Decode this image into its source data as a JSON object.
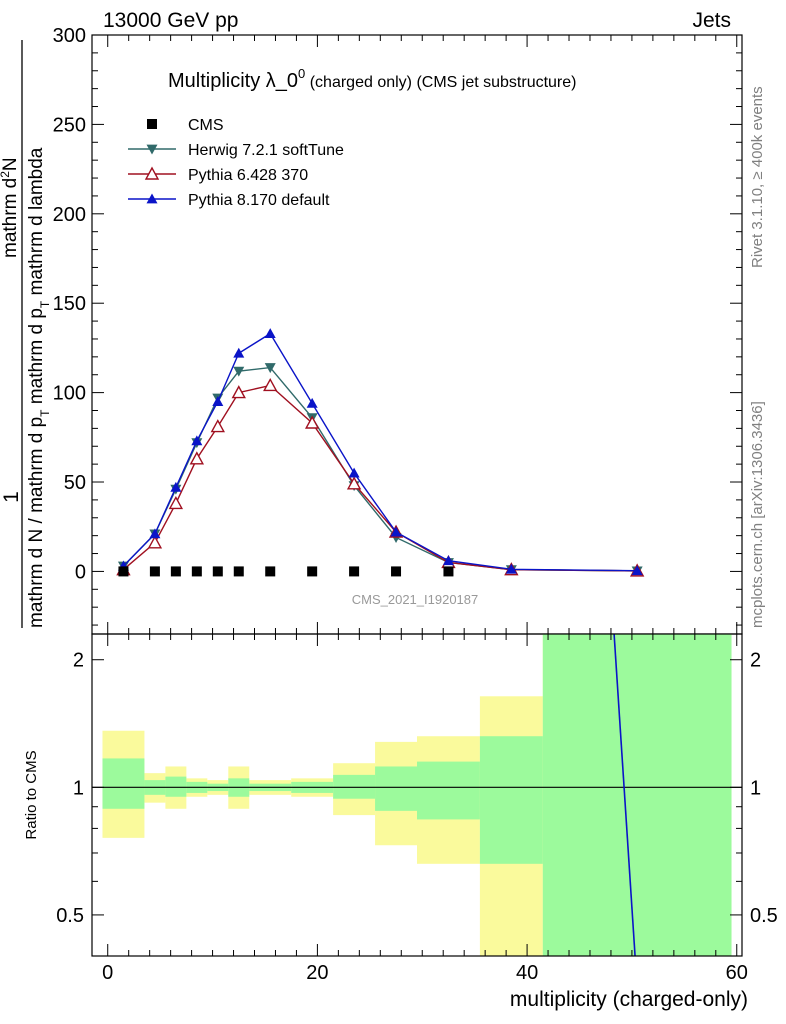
{
  "header": {
    "left_label": "13000 GeV pp",
    "right_label": "Jets"
  },
  "side_labels": {
    "rivet": "Rivet 3.1.10, ≥ 400k events",
    "mcplots": "mcplots.cern.ch [arXiv:1306.3436]"
  },
  "colors": {
    "cms": "#000000",
    "herwig": "#306a6a",
    "pythia6": "#a01020",
    "pythia8": "#0a14c8",
    "band_inner": "#9cfa9c",
    "band_outer": "#fafa9c"
  },
  "chart_data": [
    {
      "type": "line",
      "title_main": "Multiplicity λ_0",
      "title_sup": "0",
      "title_sub": " (charged only) (CMS jet substructure)",
      "ylabel_prefix": "1",
      "ylabel_den": "mathrm d N / mathrm d p",
      "ylabel_num_frac_top": "mathrm d",
      "ylabel_num_frac_top_sup": "2",
      "ylabel_num": "N",
      "ylabel_den2": "mathrm d p",
      "ylabel_den2_sub": "T",
      "ylabel_den2_tail": " mathrm d lambda",
      "ylabel_den_sub": "T",
      "ylabel_den_tail": " mathrm d p",
      "watermark": "CMS_2021_I1920187",
      "xlim": [
        -1.5,
        60.5
      ],
      "ylim": [
        -35,
        300
      ],
      "yticks": [
        0,
        50,
        100,
        150,
        200,
        250,
        300
      ],
      "yticklabels": [
        "0",
        "50",
        "100",
        "150",
        "200",
        "250",
        "300"
      ],
      "legend_position": "top-left",
      "series": [
        {
          "name": "CMS",
          "marker": "square",
          "x": [
            1.5,
            4.5,
            6.5,
            8.5,
            10.5,
            12.5,
            15.5,
            19.5,
            23.5,
            27.5,
            32.5
          ],
          "y": [
            0,
            0,
            0,
            0,
            0,
            0,
            0,
            0,
            0,
            0,
            0
          ]
        },
        {
          "name": "Herwig 7.2.1 softTune",
          "marker": "triangle-down",
          "x": [
            1.5,
            4.5,
            6.5,
            8.5,
            10.5,
            12.5,
            15.5,
            19.5,
            23.5,
            27.5,
            32.5,
            38.5,
            50.5
          ],
          "y": [
            3,
            21,
            46,
            72,
            97,
            112,
            114,
            86,
            48,
            19,
            5,
            1,
            0.3
          ]
        },
        {
          "name": "Pythia 6.428 370",
          "marker": "triangle-open",
          "x": [
            1.5,
            4.5,
            6.5,
            8.5,
            10.5,
            12.5,
            15.5,
            19.5,
            23.5,
            27.5,
            32.5,
            38.5,
            50.5
          ],
          "y": [
            1,
            16,
            38,
            63,
            81,
            100,
            104,
            83,
            49,
            22,
            5,
            1,
            0.3
          ]
        },
        {
          "name": "Pythia 8.170 default",
          "marker": "triangle-up",
          "x": [
            1.5,
            4.5,
            6.5,
            8.5,
            10.5,
            12.5,
            15.5,
            19.5,
            23.5,
            27.5,
            32.5,
            38.5,
            50.5
          ],
          "y": [
            3,
            21,
            47,
            73,
            95,
            122,
            133,
            94,
            55,
            22,
            6,
            1.2,
            0.4
          ]
        }
      ]
    },
    {
      "type": "area",
      "ylabel": "Ratio to CMS",
      "xlabel": "multiplicity (charged-only)",
      "xlim": [
        -1.5,
        60.5
      ],
      "ylim": [
        0.4,
        2.3
      ],
      "xticks": [
        0,
        20,
        40,
        60
      ],
      "xticklabels": [
        "0",
        "20",
        "40",
        "60"
      ],
      "yticks": [
        0.5,
        1,
        2
      ],
      "yticklabels": [
        "0.5",
        "1",
        "2"
      ],
      "bands": [
        {
          "x0": -0.5,
          "x1": 3.5,
          "inner": [
            0.89,
            1.17
          ],
          "outer": [
            0.76,
            1.36
          ]
        },
        {
          "x0": 3.5,
          "x1": 5.5,
          "inner": [
            0.96,
            1.04
          ],
          "outer": [
            0.92,
            1.08
          ]
        },
        {
          "x0": 5.5,
          "x1": 7.5,
          "inner": [
            0.95,
            1.06
          ],
          "outer": [
            0.89,
            1.12
          ]
        },
        {
          "x0": 7.5,
          "x1": 9.5,
          "inner": [
            0.97,
            1.03
          ],
          "outer": [
            0.95,
            1.05
          ]
        },
        {
          "x0": 9.5,
          "x1": 11.5,
          "inner": [
            0.98,
            1.02
          ],
          "outer": [
            0.96,
            1.04
          ]
        },
        {
          "x0": 11.5,
          "x1": 13.5,
          "inner": [
            0.95,
            1.05
          ],
          "outer": [
            0.89,
            1.12
          ]
        },
        {
          "x0": 13.5,
          "x1": 17.5,
          "inner": [
            0.98,
            1.02
          ],
          "outer": [
            0.96,
            1.04
          ]
        },
        {
          "x0": 17.5,
          "x1": 21.5,
          "inner": [
            0.97,
            1.03
          ],
          "outer": [
            0.95,
            1.05
          ]
        },
        {
          "x0": 21.5,
          "x1": 25.5,
          "inner": [
            0.94,
            1.07
          ],
          "outer": [
            0.86,
            1.14
          ]
        },
        {
          "x0": 25.5,
          "x1": 29.5,
          "inner": [
            0.88,
            1.12
          ],
          "outer": [
            0.73,
            1.28
          ]
        },
        {
          "x0": 29.5,
          "x1": 35.5,
          "inner": [
            0.84,
            1.15
          ],
          "outer": [
            0.66,
            1.32
          ]
        },
        {
          "x0": 35.5,
          "x1": 41.5,
          "inner": [
            0.66,
            1.32
          ],
          "outer": [
            0.4,
            1.64
          ]
        },
        {
          "x0": 41.5,
          "x1": 59.5,
          "inner": [
            0.4,
            2.3
          ],
          "outer": [
            0.4,
            2.3
          ]
        }
      ],
      "series": [
        {
          "name": "Pythia 8.170 default",
          "x": [
            48.3,
            50.3
          ],
          "y": [
            2.3,
            0.4
          ]
        }
      ]
    }
  ]
}
